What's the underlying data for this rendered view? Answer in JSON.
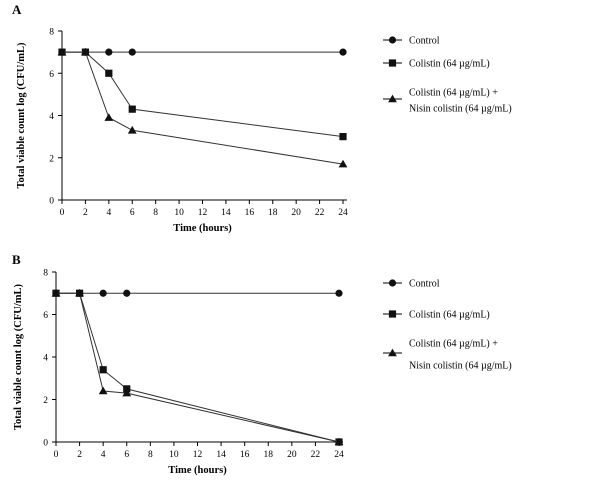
{
  "chart_data": [
    {
      "panel": "A",
      "type": "line",
      "xlabel": "Time (hours)",
      "ylabel": "Total viable count log (CFU/mL)",
      "x_ticks": [
        0,
        2,
        4,
        6,
        8,
        10,
        12,
        14,
        16,
        18,
        20,
        22,
        24
      ],
      "y_ticks": [
        0,
        2,
        4,
        6,
        8
      ],
      "xlim": [
        0,
        24
      ],
      "ylim": [
        0,
        8
      ],
      "legend_position": "right",
      "series": [
        {
          "name": "Control",
          "marker": "circle",
          "x": [
            0,
            2,
            4,
            6,
            24
          ],
          "y": [
            7,
            7,
            7,
            7,
            7
          ]
        },
        {
          "name": "Colistin (64 µg/mL)",
          "marker": "square",
          "x": [
            0,
            2,
            4,
            6,
            24
          ],
          "y": [
            7,
            7,
            6,
            4.3,
            3
          ]
        },
        {
          "name": "Colistin (64 µg/mL) +",
          "name_line2": "Nisin colistin (64 µg/mL)",
          "marker": "triangle",
          "x": [
            0,
            2,
            4,
            6,
            24
          ],
          "y": [
            7,
            7,
            3.9,
            3.3,
            1.7
          ]
        }
      ]
    },
    {
      "panel": "B",
      "type": "line",
      "xlabel": "Time (hours)",
      "ylabel": "Total viable count log (CFU/mL)",
      "x_ticks": [
        0,
        2,
        4,
        6,
        8,
        10,
        12,
        14,
        16,
        18,
        20,
        22,
        24
      ],
      "y_ticks": [
        0,
        2,
        4,
        6,
        8
      ],
      "xlim": [
        0,
        24
      ],
      "ylim": [
        0,
        8
      ],
      "legend_position": "right",
      "series": [
        {
          "name": "Control",
          "marker": "circle",
          "x": [
            0,
            2,
            4,
            6,
            24
          ],
          "y": [
            7,
            7,
            7,
            7,
            7
          ]
        },
        {
          "name": "Colistin (64 µg/mL)",
          "marker": "square",
          "x": [
            0,
            2,
            4,
            6,
            24
          ],
          "y": [
            7,
            7,
            3.4,
            2.5,
            0
          ]
        },
        {
          "name": "Colistin (64 µg/mL) +",
          "name_line2": "Nisin colistin (64 µg/mL)",
          "marker": "triangle",
          "x": [
            0,
            2,
            4,
            6,
            24
          ],
          "y": [
            7,
            7,
            2.4,
            2.3,
            0
          ]
        }
      ]
    }
  ]
}
